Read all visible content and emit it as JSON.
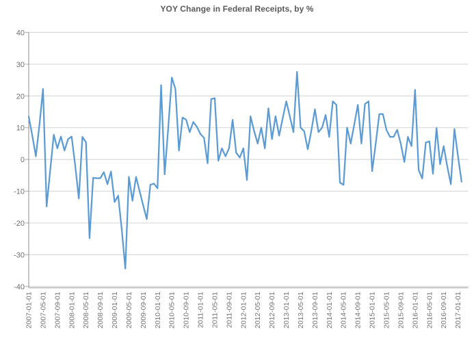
{
  "page": {
    "background": "#ffffff"
  },
  "chart_data": {
    "type": "line",
    "title": "YOY Change in Federal Receipts, by %",
    "xlabel": "",
    "ylabel": "",
    "ylim": [
      -40,
      40
    ],
    "y_ticks": [
      40,
      30,
      20,
      10,
      0,
      -10,
      -20,
      -30,
      -40
    ],
    "grid": true,
    "legend_position": "none",
    "x_tick_every": 4,
    "x_tick_labels": [
      "2007-01-01",
      "2007-05-01",
      "2007-09-01",
      "2008-01-01",
      "2008-05-01",
      "2008-09-01",
      "2009-01-01",
      "2009-05-01",
      "2009-09-01",
      "2010-01-01",
      "2010-05-01",
      "2010-09-01",
      "2011-01-01",
      "2011-05-01",
      "2011-09-01",
      "2012-01-01",
      "2012-05-01",
      "2012-09-01",
      "2013-01-01",
      "2013-05-01",
      "2013-09-01",
      "2014-01-01",
      "2014-05-01",
      "2014-09-01",
      "2015-01-01",
      "2015-05-01",
      "2015-09-01",
      "2016-01-01",
      "2016-05-01",
      "2016-09-01",
      "2017-01-01"
    ],
    "x": [
      "2007-01",
      "2007-02",
      "2007-03",
      "2007-04",
      "2007-05",
      "2007-06",
      "2007-07",
      "2007-08",
      "2007-09",
      "2007-10",
      "2007-11",
      "2007-12",
      "2008-01",
      "2008-02",
      "2008-03",
      "2008-04",
      "2008-05",
      "2008-06",
      "2008-07",
      "2008-08",
      "2008-09",
      "2008-10",
      "2008-11",
      "2008-12",
      "2009-01",
      "2009-02",
      "2009-03",
      "2009-04",
      "2009-05",
      "2009-06",
      "2009-07",
      "2009-08",
      "2009-09",
      "2009-10",
      "2009-11",
      "2009-12",
      "2010-01",
      "2010-02",
      "2010-03",
      "2010-04",
      "2010-05",
      "2010-06",
      "2010-07",
      "2010-08",
      "2010-09",
      "2010-10",
      "2010-11",
      "2010-12",
      "2011-01",
      "2011-02",
      "2011-03",
      "2011-04",
      "2011-05",
      "2011-06",
      "2011-07",
      "2011-08",
      "2011-09",
      "2011-10",
      "2011-11",
      "2011-12",
      "2012-01",
      "2012-02",
      "2012-03",
      "2012-04",
      "2012-05",
      "2012-06",
      "2012-07",
      "2012-08",
      "2012-09",
      "2012-10",
      "2012-11",
      "2012-12",
      "2013-01",
      "2013-02",
      "2013-03",
      "2013-04",
      "2013-05",
      "2013-06",
      "2013-07",
      "2013-08",
      "2013-09",
      "2013-10",
      "2013-11",
      "2013-12",
      "2014-01",
      "2014-02",
      "2014-03",
      "2014-04",
      "2014-05",
      "2014-06",
      "2014-07",
      "2014-08",
      "2014-09",
      "2014-10",
      "2014-11",
      "2014-12",
      "2015-01",
      "2015-02",
      "2015-03",
      "2015-04",
      "2015-05",
      "2015-06",
      "2015-07",
      "2015-08",
      "2015-09",
      "2015-10",
      "2015-11",
      "2015-12",
      "2016-01",
      "2016-02",
      "2016-03",
      "2016-04",
      "2016-05",
      "2016-06",
      "2016-07",
      "2016-08",
      "2016-09",
      "2016-10",
      "2016-11",
      "2016-12",
      "2017-01",
      "2017-02"
    ],
    "series": [
      {
        "name": "YOY % change in federal receipts",
        "values": [
          13.5,
          7.5,
          1.0,
          11.0,
          22.2,
          -14.8,
          -3.5,
          7.8,
          3.5,
          7.2,
          2.8,
          6.4,
          7.2,
          -2.0,
          -12.3,
          7.1,
          5.4,
          -24.8,
          -5.8,
          -5.9,
          -5.9,
          -4.0,
          -7.8,
          -3.8,
          -13.4,
          -11.4,
          -22.0,
          -34.4,
          -5.5,
          -13.0,
          -5.5,
          -10.0,
          -14.5,
          -18.8,
          -8.0,
          -7.6,
          -9.1,
          23.4,
          -4.7,
          10.0,
          25.8,
          22.2,
          2.8,
          13.2,
          12.5,
          8.6,
          11.8,
          10.3,
          8.0,
          6.8,
          -1.2,
          19.0,
          19.3,
          -0.4,
          3.5,
          1.0,
          3.5,
          12.5,
          2.1,
          0.6,
          3.5,
          -6.5,
          13.6,
          9.0,
          5.0,
          10.0,
          3.5,
          16.1,
          6.4,
          13.6,
          7.5,
          13.0,
          18.3,
          13.5,
          8.6,
          27.6,
          10.0,
          8.9,
          3.2,
          9.0,
          15.8,
          8.6,
          10.0,
          14.0,
          7.1,
          18.3,
          17.2,
          -7.3,
          -8.0,
          10.0,
          5.0,
          11.0,
          17.2,
          5.0,
          17.5,
          18.3,
          -3.7,
          5.0,
          14.3,
          14.3,
          9.3,
          7.1,
          7.1,
          9.3,
          5.0,
          -0.8,
          7.1,
          4.2,
          21.9,
          -3.3,
          -6.0,
          5.3,
          5.7,
          -4.5,
          9.9,
          -1.5,
          4.2,
          -2.2,
          -7.8,
          9.6,
          1.0,
          -7.0
        ]
      }
    ],
    "colors": {
      "line": "#5B9BD5",
      "grid": "#D9D9D9",
      "x_axis_line": "#C0C0C0",
      "y_axis_line": "#8C8C8C",
      "tick_stub": "#ABABAB",
      "tick_label": "#757575",
      "title": "#595959",
      "background": "#FFFFFF"
    }
  }
}
